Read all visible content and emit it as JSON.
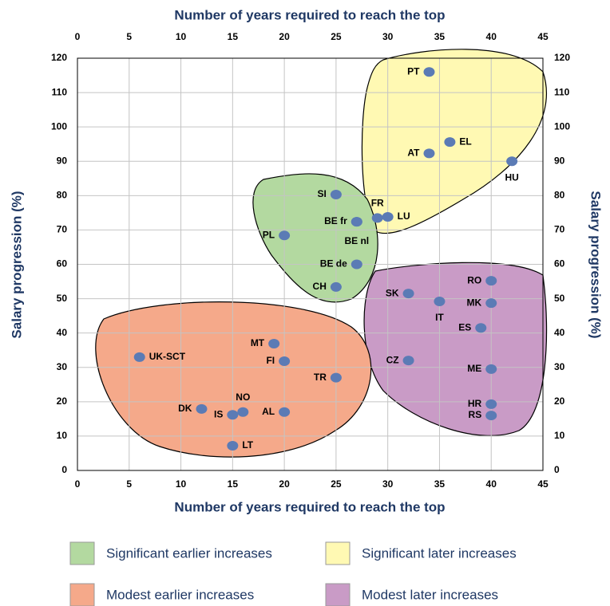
{
  "chart_data": {
    "type": "scatter",
    "x_label_top": "Number of years required to reach the top",
    "x_label": "Number of years required to reach the top",
    "y_label": "Salary progression (%)",
    "y2_label": "Salary progression (%)",
    "xlim": [
      0,
      45
    ],
    "xticks": [
      0,
      5,
      10,
      15,
      20,
      25,
      30,
      35,
      40,
      45
    ],
    "ylim": [
      0,
      120
    ],
    "yticks": [
      0,
      10,
      20,
      30,
      40,
      50,
      60,
      70,
      80,
      90,
      100,
      110,
      120
    ],
    "y2lim": [
      0,
      120
    ],
    "y2ticks": [
      0,
      10,
      20,
      30,
      40,
      50,
      60,
      70,
      80,
      90,
      100,
      110,
      120
    ],
    "grid": true,
    "marker_color": "#5b7bb5",
    "series": [
      {
        "name": "Significant earlier increases",
        "color": "#b3d9a0",
        "labels": [
          "SI",
          "BE fr",
          "BE nl",
          "PL",
          "BE de",
          "CH"
        ],
        "x": [
          25,
          27,
          27,
          20,
          27,
          25
        ],
        "values": [
          80.3,
          72.4,
          72.4,
          68.4,
          60,
          53.4
        ]
      },
      {
        "name": "Significant later increases",
        "color": "#fff9b3",
        "labels": [
          "PT",
          "EL",
          "AT",
          "HU",
          "FR",
          "LU"
        ],
        "x": [
          34,
          36,
          34,
          42,
          29,
          30
        ],
        "values": [
          116,
          95.6,
          92.3,
          90,
          73.5,
          73.8
        ]
      },
      {
        "name": "Modest earlier increases",
        "color": "#f5a98a",
        "labels": [
          "MT",
          "UK-SCT",
          "FI",
          "TR",
          "DK",
          "IS",
          "NO",
          "AL",
          "LT"
        ],
        "x": [
          19,
          6,
          20,
          25,
          12,
          15,
          16,
          20,
          15
        ],
        "values": [
          36.9,
          33,
          31.8,
          27,
          17.9,
          16.2,
          17,
          17,
          7.2
        ]
      },
      {
        "name": "Modest later increases",
        "color": "#c99bc6",
        "labels": [
          "SK",
          "IT",
          "RO",
          "MK",
          "ES",
          "CZ",
          "ME",
          "HR",
          "RS"
        ],
        "x": [
          32,
          35,
          40,
          40,
          39,
          32,
          40,
          40,
          40
        ],
        "values": [
          51.5,
          49.2,
          55.2,
          48.7,
          41.5,
          32,
          29.5,
          19.3,
          16
        ]
      }
    ]
  }
}
